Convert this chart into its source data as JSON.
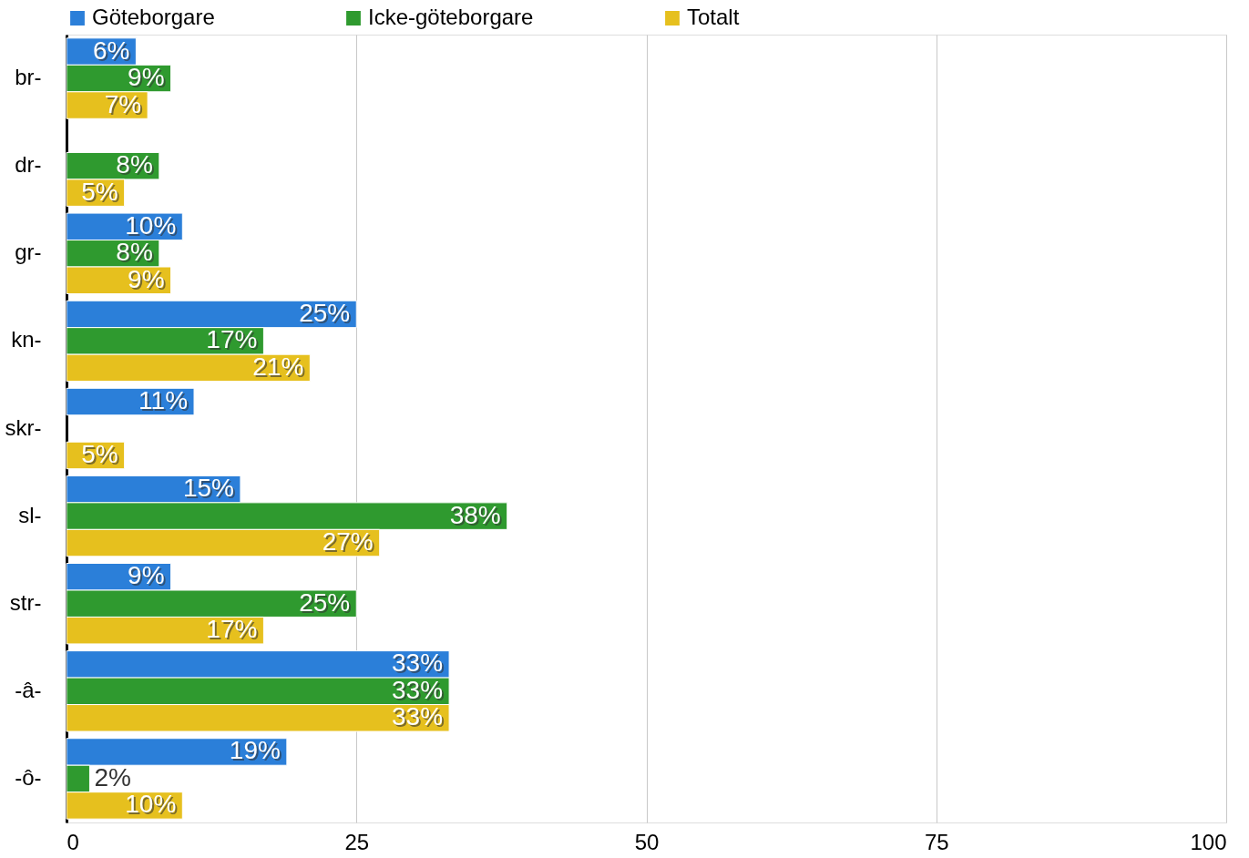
{
  "chart_data": {
    "type": "bar",
    "orientation": "horizontal",
    "categories": [
      "br-",
      "dr-",
      "gr-",
      "kn-",
      "skr-",
      "sl-",
      "str-",
      "-â-",
      "-ô-"
    ],
    "series": [
      {
        "name": "Göteborgare",
        "color": "#2b7fd9",
        "values": [
          6,
          null,
          10,
          25,
          11,
          15,
          9,
          33,
          19
        ],
        "value_labels": [
          "6%",
          null,
          "10%",
          "25%",
          "11%",
          "15%",
          "9%",
          "33%",
          "19%"
        ]
      },
      {
        "name": "Icke-göteborgare",
        "color": "#2f9a2f",
        "values": [
          9,
          8,
          8,
          17,
          null,
          38,
          25,
          33,
          2
        ],
        "value_labels": [
          "9%",
          "8%",
          "8%",
          "17%",
          null,
          "38%",
          "25%",
          "33%",
          "2%"
        ]
      },
      {
        "name": "Totalt",
        "color": "#e6c01e",
        "values": [
          7,
          5,
          9,
          21,
          5,
          27,
          17,
          33,
          10
        ],
        "value_labels": [
          "7%",
          "5%",
          "9%",
          "21%",
          "5%",
          "27%",
          "17%",
          "33%",
          "10%"
        ]
      }
    ],
    "xlim": [
      0,
      100
    ],
    "xticks": [
      0,
      25,
      50,
      75,
      100
    ],
    "grid": "x",
    "legend": "top"
  }
}
